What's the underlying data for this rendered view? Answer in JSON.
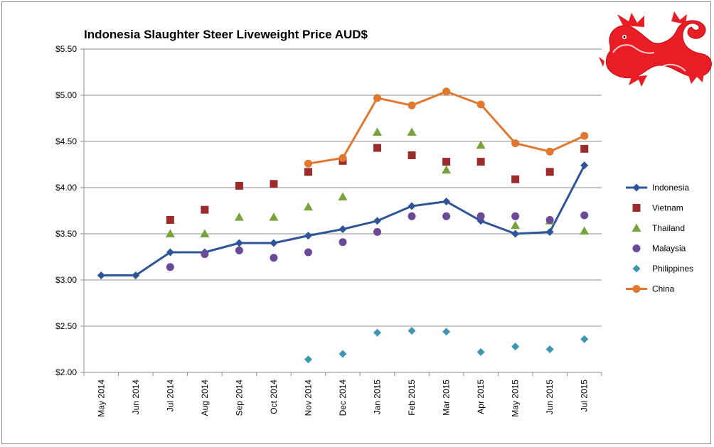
{
  "chart_data": {
    "type": "line",
    "title": "Indonesia Slaughter Steer Liveweight Price AUD$",
    "xlabel": "",
    "ylabel": "",
    "ylim": [
      2.0,
      5.5
    ],
    "y_tick_step": 0.5,
    "y_tick_format": "currency-2dp",
    "grid": true,
    "legend_position": "right",
    "categories": [
      "May 2014",
      "Jun 2014",
      "Jul 2014",
      "Aug 2014",
      "Sep 2014",
      "Oct 2014",
      "Nov 2014",
      "Dec 2014",
      "Jan 2015",
      "Feb 2015",
      "Mar 2015",
      "Apr 2015",
      "May 2015",
      "Jun 2015",
      "Jul 2015"
    ],
    "series": [
      {
        "name": "Indonesia",
        "style": "line",
        "marker": "diamond",
        "color": "#2e5597",
        "values": [
          3.05,
          3.05,
          3.3,
          3.3,
          3.4,
          3.4,
          3.48,
          3.55,
          3.64,
          3.8,
          3.85,
          3.64,
          3.5,
          3.52,
          4.24
        ]
      },
      {
        "name": "Vietnam",
        "style": "markers",
        "marker": "square",
        "color": "#9c2b2b",
        "values": [
          null,
          null,
          3.65,
          3.76,
          4.02,
          4.04,
          4.17,
          4.29,
          4.43,
          4.35,
          4.28,
          4.28,
          4.09,
          4.17,
          4.42
        ]
      },
      {
        "name": "Thailand",
        "style": "markers",
        "marker": "triangle",
        "color": "#77a33a",
        "values": [
          null,
          null,
          3.5,
          3.5,
          3.68,
          3.68,
          3.79,
          3.9,
          4.6,
          4.6,
          4.19,
          4.46,
          3.59,
          3.64,
          3.53
        ]
      },
      {
        "name": "Malaysia",
        "style": "markers",
        "marker": "circle",
        "color": "#6a4a98",
        "values": [
          null,
          null,
          3.14,
          3.28,
          3.32,
          3.24,
          3.3,
          3.41,
          3.52,
          3.69,
          3.69,
          3.69,
          3.69,
          3.65,
          3.7
        ]
      },
      {
        "name": "Philippines",
        "style": "markers",
        "marker": "diamond",
        "color": "#3d97b1",
        "values": [
          null,
          null,
          null,
          null,
          null,
          null,
          2.14,
          2.2,
          2.43,
          2.45,
          2.44,
          2.22,
          2.28,
          2.25,
          2.36
        ]
      },
      {
        "name": "China",
        "style": "line",
        "marker": "circle",
        "color": "#e0782f",
        "values": [
          null,
          null,
          null,
          null,
          null,
          null,
          4.26,
          4.32,
          4.97,
          4.89,
          5.04,
          4.9,
          4.48,
          4.39,
          4.56
        ]
      }
    ]
  },
  "logo": {
    "name": "red-dragon",
    "color": "#ea1c24"
  }
}
